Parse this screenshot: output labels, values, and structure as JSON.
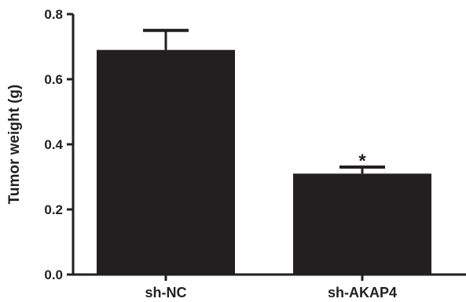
{
  "chart_data": {
    "type": "bar",
    "categories": [
      "sh-NC",
      "sh-AKAP4"
    ],
    "values": [
      0.69,
      0.31
    ],
    "error_upper": [
      0.75,
      0.33
    ],
    "annotations": [
      "",
      "*"
    ],
    "xlabel": "",
    "ylabel": "Tumor weight (g)",
    "ylim": [
      0.0,
      0.8
    ],
    "yticks": [
      "0.0",
      "0.2",
      "0.4",
      "0.6",
      "0.8"
    ],
    "grid": false,
    "bar_color": "#231f20",
    "axis_color": "#231f20"
  }
}
